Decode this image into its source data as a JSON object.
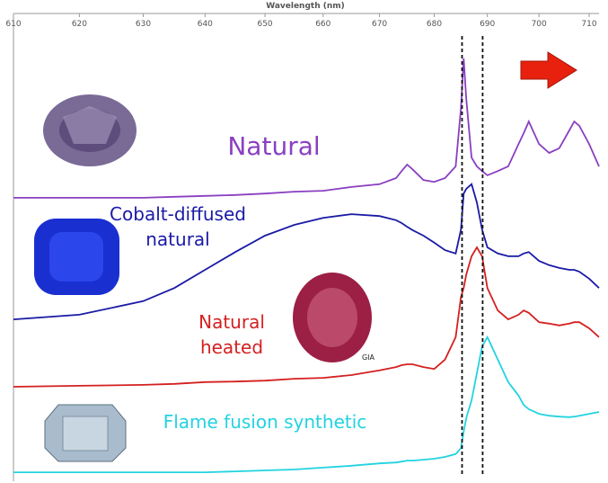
{
  "chart_data": {
    "type": "line",
    "x_label": "Wavelength (nm)",
    "x_scale": "reciprocal",
    "xlim": [
      610,
      712
    ],
    "xticks": [
      610,
      620,
      630,
      640,
      650,
      660,
      670,
      680,
      690,
      700,
      710
    ],
    "ylim": [
      0,
      100
    ],
    "reference_lines": [
      685.2,
      689.1
    ],
    "x": [
      610,
      620,
      630,
      635,
      640,
      645,
      650,
      655,
      660,
      665,
      670,
      673,
      674,
      675,
      676,
      678,
      680,
      682,
      684,
      685,
      685.5,
      686,
      687,
      688,
      689,
      690,
      692,
      694,
      696,
      697,
      698,
      700,
      702,
      704,
      706,
      707,
      708,
      710,
      712
    ],
    "series": [
      {
        "label_lines": [
          "Natural"
        ],
        "color": "#8a3fc1",
        "values": [
          60.6,
          60.6,
          60.6,
          60.8,
          61.0,
          61.2,
          61.5,
          61.9,
          62.1,
          62.9,
          63.5,
          64.8,
          66.3,
          67.7,
          66.7,
          64.4,
          64.0,
          64.8,
          67.3,
          79.8,
          90.4,
          81.7,
          69.2,
          67.3,
          66.3,
          65.4,
          66.3,
          67.3,
          72.1,
          74.4,
          76.9,
          72.1,
          70.2,
          71.2,
          75.0,
          76.9,
          76.0,
          72.1,
          67.3
        ]
      },
      {
        "label_lines": [
          "Cobalt-diffused",
          "natural"
        ],
        "color": "#1a1aa6",
        "values": [
          34.6,
          35.6,
          38.5,
          41.3,
          45.2,
          49.0,
          52.5,
          54.8,
          56.3,
          57.1,
          56.7,
          55.8,
          55.2,
          54.4,
          53.7,
          52.5,
          51.0,
          49.4,
          48.7,
          53.8,
          61.5,
          62.5,
          63.5,
          59.6,
          53.8,
          50.0,
          48.7,
          48.1,
          48.1,
          48.7,
          49.0,
          47.1,
          46.2,
          45.6,
          45.2,
          45.2,
          44.8,
          43.3,
          41.3
        ]
      },
      {
        "label_lines": [
          "Natural",
          "heated"
        ],
        "color": "#d42020",
        "values": [
          20.2,
          20.4,
          20.6,
          20.8,
          21.2,
          21.3,
          21.5,
          21.9,
          22.1,
          22.7,
          23.7,
          24.4,
          24.8,
          25.0,
          25.0,
          24.4,
          24.0,
          26.0,
          30.8,
          39.4,
          41.3,
          44.2,
          48.1,
          50.0,
          48.1,
          41.3,
          36.5,
          34.6,
          35.6,
          36.5,
          36.0,
          34.0,
          33.7,
          33.3,
          33.7,
          34.0,
          34.0,
          32.7,
          30.8
        ]
      },
      {
        "label_lines": [
          "Flame fusion synthetic"
        ],
        "color": "#22d3e0",
        "values": [
          1.9,
          1.9,
          1.9,
          1.9,
          1.9,
          2.1,
          2.3,
          2.5,
          2.9,
          3.3,
          3.8,
          4.0,
          4.2,
          4.4,
          4.4,
          4.6,
          4.8,
          5.2,
          5.8,
          7.1,
          10.6,
          13.5,
          17.3,
          23.1,
          28.8,
          30.8,
          26.0,
          21.2,
          18.3,
          16.3,
          15.4,
          14.4,
          14.0,
          13.8,
          13.7,
          13.8,
          14.0,
          14.4,
          14.8
        ]
      }
    ],
    "image_credit": "GIA"
  }
}
